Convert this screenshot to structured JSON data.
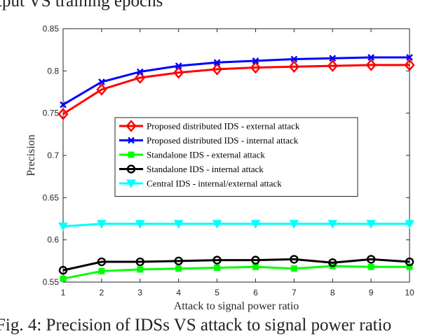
{
  "captions": {
    "top": "tput VS training epochs",
    "bottom": "Fig. 4: Precision of IDSs VS attack to signal power ratio"
  },
  "chart_data": {
    "type": "line",
    "xlabel": "Attack to signal power ratio",
    "ylabel": "Precision",
    "xlim": [
      1,
      10
    ],
    "ylim": [
      0.55,
      0.85
    ],
    "xticks": [
      1,
      2,
      3,
      4,
      5,
      6,
      7,
      8,
      9,
      10
    ],
    "yticks": [
      0.55,
      0.6,
      0.65,
      0.7,
      0.75,
      0.8,
      0.85
    ],
    "ytick_labels": [
      "0.55",
      "0.6",
      "0.65",
      "0.7",
      "0.75",
      "0.8",
      "0.85"
    ],
    "grid": false,
    "legend_position": "center",
    "x": [
      1,
      2,
      3,
      4,
      5,
      6,
      7,
      8,
      9,
      10
    ],
    "series": [
      {
        "name": "Proposed distributed IDS - external attack",
        "color": "#ff0000",
        "marker": "diamond",
        "values": [
          0.749,
          0.778,
          0.792,
          0.798,
          0.802,
          0.804,
          0.805,
          0.806,
          0.807,
          0.807
        ]
      },
      {
        "name": "Proposed distributed IDS - internal attack",
        "color": "#0000ff",
        "marker": "x",
        "values": [
          0.76,
          0.787,
          0.799,
          0.806,
          0.81,
          0.812,
          0.814,
          0.815,
          0.816,
          0.816
        ]
      },
      {
        "name": "Standalone IDS - external attack",
        "color": "#00ff00",
        "marker": "square",
        "values": [
          0.554,
          0.563,
          0.565,
          0.566,
          0.567,
          0.568,
          0.566,
          0.569,
          0.568,
          0.568
        ]
      },
      {
        "name": "Standalone IDS - internal attack",
        "color": "#000000",
        "marker": "circle",
        "values": [
          0.564,
          0.574,
          0.574,
          0.575,
          0.576,
          0.576,
          0.577,
          0.573,
          0.577,
          0.574
        ]
      },
      {
        "name": "Central IDS - internal/external attack",
        "color": "#00ffff",
        "marker": "triangle-down",
        "values": [
          0.616,
          0.619,
          0.619,
          0.619,
          0.619,
          0.619,
          0.619,
          0.619,
          0.619,
          0.619
        ]
      }
    ]
  }
}
